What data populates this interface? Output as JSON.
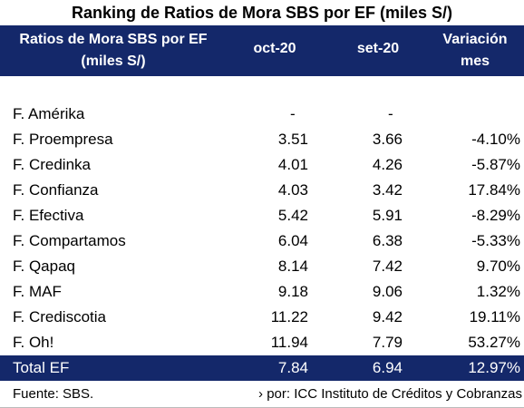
{
  "title": "Ranking de Ratios de Mora SBS por EF (miles S/)",
  "header": {
    "name_line1": "Ratios de Mora SBS por EF",
    "name_line2": "(miles S/)",
    "col_oct": "oct-20",
    "col_set": "set-20",
    "var_line1": "Variación",
    "var_line2": "mes"
  },
  "rows": [
    {
      "name": "F. Amérika",
      "oct": "-",
      "set": "-",
      "var": ""
    },
    {
      "name": "F. Proempresa",
      "oct": "3.51",
      "set": "3.66",
      "var": "-4.10%"
    },
    {
      "name": "F. Credinka",
      "oct": "4.01",
      "set": "4.26",
      "var": "-5.87%"
    },
    {
      "name": "F. Confianza",
      "oct": "4.03",
      "set": "3.42",
      "var": "17.84%"
    },
    {
      "name": "F. Efectiva",
      "oct": "5.42",
      "set": "5.91",
      "var": "-8.29%"
    },
    {
      "name": "F. Compartamos",
      "oct": "6.04",
      "set": "6.38",
      "var": "-5.33%"
    },
    {
      "name": "F. Qapaq",
      "oct": "8.14",
      "set": "7.42",
      "var": "9.70%"
    },
    {
      "name": "F. MAF",
      "oct": "9.18",
      "set": "9.06",
      "var": "1.32%"
    },
    {
      "name": "F. Crediscotia",
      "oct": "11.22",
      "set": "9.42",
      "var": "19.11%"
    },
    {
      "name": "F. Oh!",
      "oct": "11.94",
      "set": "7.79",
      "var": "53.27%"
    }
  ],
  "total": {
    "name": "Total EF",
    "oct": "7.84",
    "set": "6.94",
    "var": "12.97%"
  },
  "footer": {
    "source": "Fuente: SBS.",
    "prepared_by": "› por: ICC Instituto de Créditos y Cobranzas"
  },
  "colors": {
    "header_bg": "#14286a",
    "header_text": "#ffffff"
  }
}
